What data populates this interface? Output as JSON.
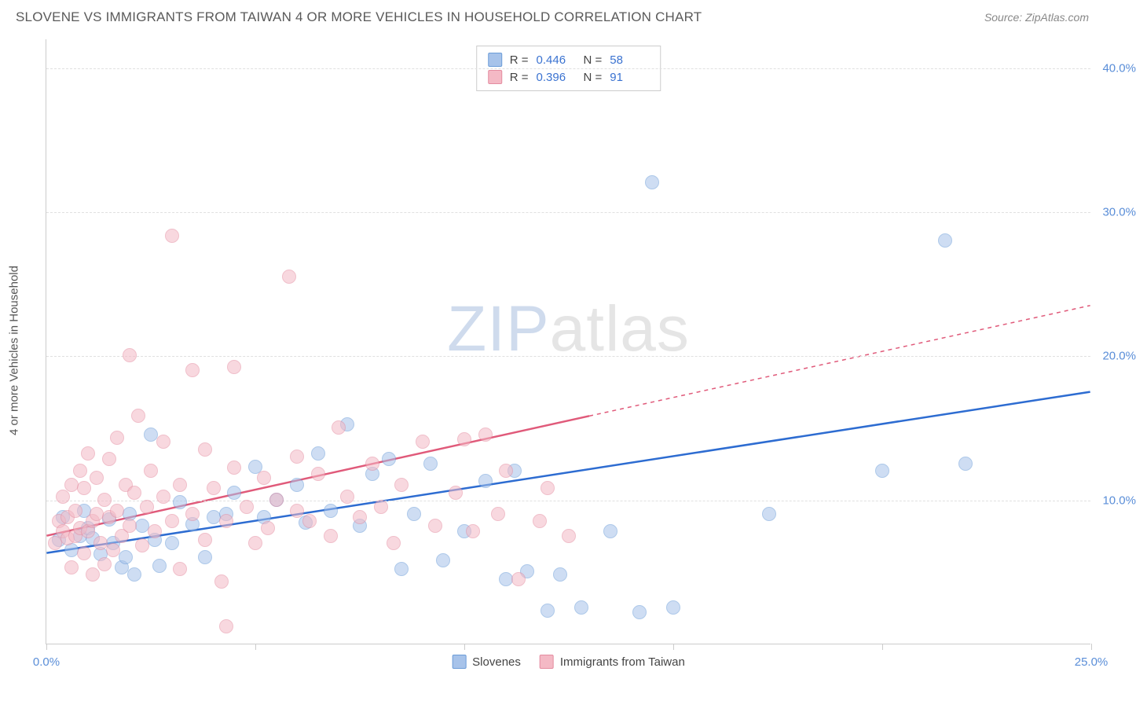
{
  "title": "SLOVENE VS IMMIGRANTS FROM TAIWAN 4 OR MORE VEHICLES IN HOUSEHOLD CORRELATION CHART",
  "source": "Source: ZipAtlas.com",
  "watermark_left": "ZIP",
  "watermark_right": "atlas",
  "chart": {
    "type": "scatter",
    "xlim": [
      0,
      25
    ],
    "ylim": [
      0,
      42
    ],
    "xtick_positions": [
      0,
      5,
      10,
      15,
      20,
      25
    ],
    "xtick_labels": [
      "0.0%",
      "",
      "",
      "",
      "",
      "25.0%"
    ],
    "ytick_positions": [
      10,
      20,
      30,
      40
    ],
    "ytick_labels": [
      "10.0%",
      "20.0%",
      "30.0%",
      "40.0%"
    ],
    "yaxis_title": "4 or more Vehicles in Household",
    "grid_color": "#e0e0e0",
    "point_radius": 9,
    "point_opacity": 0.55,
    "series": [
      {
        "name": "Slovenes",
        "color_fill": "#a7c3ea",
        "color_stroke": "#6b9cd8",
        "R": "0.446",
        "N": "58",
        "points": [
          [
            0.3,
            7.2
          ],
          [
            0.4,
            8.8
          ],
          [
            0.6,
            6.5
          ],
          [
            0.8,
            7.5
          ],
          [
            0.9,
            9.2
          ],
          [
            1.0,
            8.0
          ],
          [
            1.1,
            7.3
          ],
          [
            1.3,
            6.2
          ],
          [
            1.5,
            8.6
          ],
          [
            1.6,
            7.0
          ],
          [
            1.8,
            5.3
          ],
          [
            1.9,
            6.0
          ],
          [
            2.0,
            9.0
          ],
          [
            2.1,
            4.8
          ],
          [
            2.3,
            8.2
          ],
          [
            2.5,
            14.5
          ],
          [
            2.6,
            7.2
          ],
          [
            2.7,
            5.4
          ],
          [
            3.0,
            7.0
          ],
          [
            3.2,
            9.8
          ],
          [
            3.5,
            8.3
          ],
          [
            3.8,
            6.0
          ],
          [
            4.0,
            8.8
          ],
          [
            4.3,
            9.0
          ],
          [
            4.5,
            10.5
          ],
          [
            5.0,
            12.3
          ],
          [
            5.2,
            8.8
          ],
          [
            5.5,
            10.0
          ],
          [
            6.0,
            11.0
          ],
          [
            6.2,
            8.4
          ],
          [
            6.5,
            13.2
          ],
          [
            6.8,
            9.2
          ],
          [
            7.2,
            15.2
          ],
          [
            7.5,
            8.2
          ],
          [
            7.8,
            11.8
          ],
          [
            8.2,
            12.8
          ],
          [
            8.5,
            5.2
          ],
          [
            8.8,
            9.0
          ],
          [
            9.2,
            12.5
          ],
          [
            9.5,
            5.8
          ],
          [
            10.0,
            7.8
          ],
          [
            10.5,
            11.3
          ],
          [
            11.0,
            4.5
          ],
          [
            11.2,
            12.0
          ],
          [
            11.5,
            5.0
          ],
          [
            12.0,
            2.3
          ],
          [
            12.3,
            4.8
          ],
          [
            12.8,
            2.5
          ],
          [
            13.5,
            7.8
          ],
          [
            14.2,
            2.2
          ],
          [
            14.5,
            32.0
          ],
          [
            15.0,
            2.5
          ],
          [
            17.3,
            9.0
          ],
          [
            20.0,
            12.0
          ],
          [
            21.5,
            28.0
          ],
          [
            22.0,
            12.5
          ]
        ],
        "trend": {
          "x1": 0,
          "y1": 6.3,
          "x2": 25,
          "y2": 17.5,
          "solid_until_x": 25
        }
      },
      {
        "name": "Immigrants from Taiwan",
        "color_fill": "#f4b9c5",
        "color_stroke": "#e48ca0",
        "R": "0.396",
        "N": "91",
        "points": [
          [
            0.2,
            7.0
          ],
          [
            0.3,
            8.5
          ],
          [
            0.4,
            7.8
          ],
          [
            0.4,
            10.2
          ],
          [
            0.5,
            7.3
          ],
          [
            0.5,
            8.8
          ],
          [
            0.6,
            5.3
          ],
          [
            0.6,
            11.0
          ],
          [
            0.7,
            7.5
          ],
          [
            0.7,
            9.2
          ],
          [
            0.8,
            12.0
          ],
          [
            0.8,
            8.0
          ],
          [
            0.9,
            6.3
          ],
          [
            0.9,
            10.8
          ],
          [
            1.0,
            7.8
          ],
          [
            1.0,
            13.2
          ],
          [
            1.1,
            8.5
          ],
          [
            1.1,
            4.8
          ],
          [
            1.2,
            9.0
          ],
          [
            1.2,
            11.5
          ],
          [
            1.3,
            7.0
          ],
          [
            1.4,
            10.0
          ],
          [
            1.4,
            5.5
          ],
          [
            1.5,
            8.8
          ],
          [
            1.5,
            12.8
          ],
          [
            1.6,
            6.5
          ],
          [
            1.7,
            14.3
          ],
          [
            1.7,
            9.2
          ],
          [
            1.8,
            7.5
          ],
          [
            1.9,
            11.0
          ],
          [
            2.0,
            20.0
          ],
          [
            2.0,
            8.2
          ],
          [
            2.1,
            10.5
          ],
          [
            2.2,
            15.8
          ],
          [
            2.3,
            6.8
          ],
          [
            2.4,
            9.5
          ],
          [
            2.5,
            12.0
          ],
          [
            2.6,
            7.8
          ],
          [
            2.8,
            10.2
          ],
          [
            2.8,
            14.0
          ],
          [
            3.0,
            8.5
          ],
          [
            3.0,
            28.3
          ],
          [
            3.2,
            11.0
          ],
          [
            3.2,
            5.2
          ],
          [
            3.5,
            19.0
          ],
          [
            3.5,
            9.0
          ],
          [
            3.8,
            13.5
          ],
          [
            3.8,
            7.2
          ],
          [
            4.0,
            10.8
          ],
          [
            4.2,
            4.3
          ],
          [
            4.3,
            8.5
          ],
          [
            4.3,
            1.2
          ],
          [
            4.5,
            12.2
          ],
          [
            4.5,
            19.2
          ],
          [
            4.8,
            9.5
          ],
          [
            5.0,
            7.0
          ],
          [
            5.2,
            11.5
          ],
          [
            5.3,
            8.0
          ],
          [
            5.5,
            10.0
          ],
          [
            5.8,
            25.5
          ],
          [
            6.0,
            9.2
          ],
          [
            6.0,
            13.0
          ],
          [
            6.3,
            8.5
          ],
          [
            6.5,
            11.8
          ],
          [
            6.8,
            7.5
          ],
          [
            7.0,
            15.0
          ],
          [
            7.2,
            10.2
          ],
          [
            7.5,
            8.8
          ],
          [
            7.8,
            12.5
          ],
          [
            8.0,
            9.5
          ],
          [
            8.3,
            7.0
          ],
          [
            8.5,
            11.0
          ],
          [
            9.0,
            14.0
          ],
          [
            9.3,
            8.2
          ],
          [
            9.8,
            10.5
          ],
          [
            10.0,
            14.2
          ],
          [
            10.2,
            7.8
          ],
          [
            10.5,
            14.5
          ],
          [
            10.8,
            9.0
          ],
          [
            11.0,
            12.0
          ],
          [
            11.3,
            4.5
          ],
          [
            11.8,
            8.5
          ],
          [
            12.0,
            10.8
          ],
          [
            12.5,
            7.5
          ]
        ],
        "trend": {
          "x1": 0,
          "y1": 7.5,
          "x2": 25,
          "y2": 23.5,
          "solid_until_x": 13
        }
      }
    ]
  },
  "legend_bottom": [
    {
      "label": "Slovenes",
      "fill": "#a7c3ea",
      "stroke": "#6b9cd8"
    },
    {
      "label": "Immigrants from Taiwan",
      "fill": "#f4b9c5",
      "stroke": "#e48ca0"
    }
  ]
}
